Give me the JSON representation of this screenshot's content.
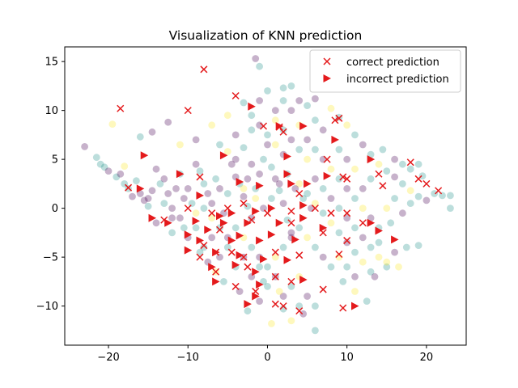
{
  "chart_data": {
    "type": "scatter",
    "title": "Visualization of KNN prediction",
    "xlabel": "",
    "ylabel": "",
    "xlim": [
      -25.5,
      25
    ],
    "ylim": [
      -14,
      16.5
    ],
    "xticks": [
      -20,
      -10,
      0,
      10,
      20
    ],
    "yticks": [
      -10,
      -5,
      0,
      5,
      10,
      15
    ],
    "grid": false,
    "legend_position": "top-right",
    "colors": {
      "class_purple": "#440154",
      "class_teal": "#21918c",
      "class_yellow": "#fde725",
      "prediction_red": "#e41a1c",
      "axis": "#000000"
    },
    "background_points": [
      [
        -23,
        6.3,
        0
      ],
      [
        -21.5,
        5.2,
        1
      ],
      [
        -20.5,
        4.2,
        1
      ],
      [
        -19,
        3.2,
        1
      ],
      [
        -18.5,
        3.5,
        0
      ],
      [
        -17.5,
        2,
        1
      ],
      [
        -16,
        1.5,
        0
      ],
      [
        -15.5,
        0.8,
        0
      ],
      [
        -15,
        0.2,
        1
      ],
      [
        -14.5,
        1.8,
        0
      ],
      [
        -14,
        4,
        0
      ],
      [
        -13.5,
        2.5,
        1
      ],
      [
        -13,
        3,
        0
      ],
      [
        -12.5,
        1.5,
        0
      ],
      [
        -12,
        0,
        0
      ],
      [
        -11.5,
        2,
        0
      ],
      [
        -11,
        3.5,
        1
      ],
      [
        -10.5,
        1,
        0
      ],
      [
        -10,
        2,
        0
      ],
      [
        -9.5,
        0.5,
        1
      ],
      [
        -9,
        4.5,
        0
      ],
      [
        -8.5,
        3.8,
        1
      ],
      [
        -8,
        2.5,
        1
      ],
      [
        -7.5,
        1.5,
        0
      ],
      [
        -7,
        0.5,
        0
      ],
      [
        -6.5,
        3,
        1
      ],
      [
        -6,
        2,
        0
      ],
      [
        -5.5,
        -0.5,
        0
      ],
      [
        -5,
        1.5,
        1
      ],
      [
        -4.5,
        4.5,
        0
      ],
      [
        -4,
        3.2,
        0
      ],
      [
        -3.5,
        2.5,
        1
      ],
      [
        -3,
        1.2,
        0
      ],
      [
        -2.5,
        0.2,
        1
      ],
      [
        -2,
        -1,
        0
      ],
      [
        -1.5,
        2,
        1
      ],
      [
        -1,
        3.5,
        0
      ],
      [
        -0.5,
        5,
        1
      ],
      [
        0,
        6.5,
        0
      ],
      [
        0.5,
        4.2,
        1
      ],
      [
        1,
        3,
        0
      ],
      [
        1.5,
        1.8,
        1
      ],
      [
        2,
        0.5,
        0
      ],
      [
        2.5,
        -1.2,
        1
      ],
      [
        3,
        -2.5,
        0
      ],
      [
        -14,
        -1.5,
        0
      ],
      [
        -12,
        -2.5,
        1
      ],
      [
        -10,
        -3,
        0
      ],
      [
        -8,
        -4,
        1
      ],
      [
        -6,
        -5,
        0
      ],
      [
        -4,
        -6,
        1
      ],
      [
        -2,
        -7,
        0
      ],
      [
        0,
        -8,
        1
      ],
      [
        2,
        -9,
        0
      ],
      [
        4,
        -10,
        1
      ],
      [
        -11,
        -1,
        0
      ],
      [
        -9,
        -2,
        1
      ],
      [
        -7,
        -3,
        0
      ],
      [
        -5,
        -4,
        1
      ],
      [
        -3,
        -5,
        0
      ],
      [
        -1,
        -6,
        1
      ],
      [
        1,
        -7,
        0
      ],
      [
        3,
        -8,
        1
      ],
      [
        5,
        -9,
        0
      ],
      [
        6,
        -10,
        1
      ],
      [
        -1.5,
        15.3,
        0
      ],
      [
        -1,
        14.5,
        1
      ],
      [
        2,
        12.3,
        1
      ],
      [
        3,
        12.5,
        1
      ],
      [
        4,
        11,
        0
      ],
      [
        5,
        10.5,
        1
      ],
      [
        6,
        11.2,
        0
      ],
      [
        8,
        10.2,
        2
      ],
      [
        9,
        9.3,
        1
      ],
      [
        10,
        8.5,
        2
      ],
      [
        -3,
        10.8,
        1
      ],
      [
        -5,
        9.5,
        2
      ],
      [
        -7,
        8.5,
        2
      ],
      [
        -9,
        7,
        0
      ],
      [
        -11,
        6.5,
        2
      ],
      [
        -12.5,
        8.8,
        0
      ],
      [
        -14.5,
        7.8,
        0
      ],
      [
        -16,
        7.3,
        1
      ],
      [
        -19.5,
        8.6,
        2
      ],
      [
        -18,
        4.3,
        2
      ],
      [
        11,
        7.5,
        1
      ],
      [
        12,
        6.5,
        0
      ],
      [
        13,
        5.5,
        1
      ],
      [
        14,
        4.5,
        2
      ],
      [
        15,
        3.8,
        1
      ],
      [
        16,
        3.2,
        0
      ],
      [
        17,
        2.5,
        1
      ],
      [
        18,
        1.8,
        2
      ],
      [
        19,
        1.2,
        1
      ],
      [
        20,
        0.8,
        0
      ],
      [
        21,
        1.5,
        1
      ],
      [
        22,
        1.3,
        1
      ],
      [
        23,
        1.3,
        1
      ],
      [
        23,
        0,
        1
      ],
      [
        19.5,
        3.3,
        1
      ],
      [
        14.5,
        6,
        1
      ],
      [
        16,
        5,
        0
      ],
      [
        17,
        4.5,
        1
      ],
      [
        18,
        4,
        1
      ],
      [
        19,
        4.5,
        1
      ],
      [
        6,
        3,
        0
      ],
      [
        7,
        2,
        1
      ],
      [
        8,
        1,
        0
      ],
      [
        9,
        0,
        1
      ],
      [
        10,
        -1,
        0
      ],
      [
        11,
        -2,
        1
      ],
      [
        12,
        -3,
        0
      ],
      [
        13,
        -4,
        1
      ],
      [
        14,
        -5,
        2
      ],
      [
        15,
        -6,
        1
      ],
      [
        4,
        2.5,
        2
      ],
      [
        5,
        1.5,
        1
      ],
      [
        6,
        0.5,
        2
      ],
      [
        7,
        -0.5,
        1
      ],
      [
        8,
        -1.5,
        2
      ],
      [
        9,
        -2.5,
        1
      ],
      [
        10,
        -3.5,
        0
      ],
      [
        11,
        -4.5,
        1
      ],
      [
        12,
        -5.5,
        2
      ],
      [
        13,
        -6.5,
        1
      ],
      [
        5,
        7,
        0
      ],
      [
        6,
        6,
        1
      ],
      [
        7,
        5,
        0
      ],
      [
        8,
        4,
        2
      ],
      [
        9,
        3,
        1
      ],
      [
        10,
        2,
        0
      ],
      [
        11,
        1,
        1
      ],
      [
        12,
        0,
        2
      ],
      [
        13,
        -1,
        0
      ],
      [
        14,
        -2,
        1
      ],
      [
        1,
        9,
        2
      ],
      [
        2,
        8,
        1
      ],
      [
        3,
        7,
        0
      ],
      [
        4,
        6,
        1
      ],
      [
        5,
        5,
        2
      ],
      [
        -2,
        9.5,
        1
      ],
      [
        -1,
        8.5,
        0
      ],
      [
        0,
        7.5,
        1
      ],
      [
        1,
        6.5,
        2
      ],
      [
        2,
        5.5,
        0
      ],
      [
        -6,
        6.5,
        1
      ],
      [
        -5,
        5.8,
        2
      ],
      [
        -4,
        5,
        0
      ],
      [
        -3,
        6.2,
        1
      ],
      [
        -2,
        4.5,
        0
      ],
      [
        -8,
        0,
        1
      ],
      [
        -7,
        -1,
        2
      ],
      [
        -6,
        -2,
        1
      ],
      [
        -5,
        -3,
        0
      ],
      [
        -4,
        -2,
        1
      ],
      [
        -3,
        -3,
        2
      ],
      [
        -2,
        -4,
        1
      ],
      [
        -1,
        -5,
        0
      ],
      [
        0,
        -6,
        1
      ],
      [
        1,
        -5,
        2
      ],
      [
        2,
        -4,
        1
      ],
      [
        3,
        -3,
        0
      ],
      [
        4,
        -2,
        1
      ],
      [
        5,
        -3,
        2
      ],
      [
        6,
        -4,
        1
      ],
      [
        7,
        -5,
        0
      ],
      [
        8,
        -6,
        1
      ],
      [
        9,
        -5,
        2
      ],
      [
        10,
        -6,
        1
      ],
      [
        11,
        -7,
        0
      ],
      [
        -9,
        -0.5,
        2
      ],
      [
        -10.5,
        -2,
        1
      ],
      [
        -12,
        -1,
        0
      ],
      [
        -13,
        0.5,
        1
      ],
      [
        -15,
        1,
        0
      ],
      [
        -16.5,
        2.8,
        1
      ],
      [
        -17,
        1.2,
        0
      ],
      [
        -18,
        2.5,
        1
      ],
      [
        -20,
        3.8,
        0
      ],
      [
        -21,
        4.5,
        1
      ],
      [
        0.5,
        -11.8,
        2
      ],
      [
        -2.5,
        -10.5,
        1
      ],
      [
        3,
        -11.5,
        2
      ],
      [
        -1,
        -9.5,
        0
      ],
      [
        2,
        -10.3,
        1
      ],
      [
        6,
        -12.5,
        1
      ],
      [
        4.5,
        -10.8,
        0
      ],
      [
        1.5,
        -8.5,
        2
      ],
      [
        -0.5,
        -7.5,
        1
      ],
      [
        4,
        -7,
        2
      ],
      [
        -3.5,
        -8.5,
        0
      ],
      [
        -5.5,
        -7.5,
        1
      ],
      [
        -6.5,
        -6.5,
        2
      ],
      [
        -7.5,
        -5.5,
        0
      ],
      [
        -8.5,
        -4.5,
        1
      ],
      [
        9.5,
        -7.5,
        1
      ],
      [
        11,
        -8.5,
        2
      ],
      [
        12.5,
        -9.5,
        1
      ],
      [
        13.5,
        -7,
        0
      ],
      [
        15,
        -5.5,
        2
      ],
      [
        16.5,
        -6,
        2
      ],
      [
        17.5,
        -4,
        1
      ],
      [
        19,
        -3.8,
        1
      ],
      [
        16,
        -4.5,
        0
      ],
      [
        14,
        -3.5,
        1
      ],
      [
        15,
        0,
        2
      ],
      [
        16,
        1,
        1
      ],
      [
        17,
        -0.5,
        0
      ],
      [
        18,
        0.5,
        1
      ],
      [
        15.5,
        -1.5,
        1
      ],
      [
        12,
        2,
        0
      ],
      [
        13,
        3,
        1
      ],
      [
        11,
        4,
        2
      ],
      [
        10,
        5,
        0
      ],
      [
        9,
        6,
        1
      ],
      [
        7,
        8,
        0
      ],
      [
        6,
        9,
        1
      ],
      [
        4,
        8.5,
        2
      ],
      [
        3,
        10,
        0
      ],
      [
        2,
        11,
        1
      ],
      [
        -1,
        11,
        0
      ],
      [
        0,
        12,
        1
      ],
      [
        1,
        10,
        0
      ],
      [
        -2,
        8,
        1
      ],
      [
        -4,
        7.5,
        0
      ],
      [
        -3,
        2,
        2
      ],
      [
        -2.5,
        3,
        0
      ],
      [
        -1.5,
        1,
        2
      ],
      [
        -0.5,
        0,
        0
      ],
      [
        0.5,
        1,
        1
      ],
      [
        1.5,
        2.5,
        0
      ],
      [
        2.5,
        3.5,
        1
      ],
      [
        3.5,
        2,
        0
      ],
      [
        4.5,
        1,
        1
      ],
      [
        5.5,
        0,
        0
      ]
    ],
    "series": [
      {
        "name": "correct prediction",
        "marker": "x",
        "points": [
          [
            -8,
            14.2
          ],
          [
            -4,
            11.5
          ],
          [
            -10,
            10
          ],
          [
            -18.5,
            10.2
          ],
          [
            1.5,
            8.3
          ],
          [
            2,
            7.8
          ],
          [
            8.5,
            9
          ],
          [
            9,
            9.2
          ],
          [
            7.5,
            5
          ],
          [
            10,
            3
          ],
          [
            9.5,
            3.2
          ],
          [
            14,
            3.5
          ],
          [
            14.5,
            2.3
          ],
          [
            18,
            4.7
          ],
          [
            19,
            3
          ],
          [
            20,
            2.5
          ],
          [
            21.5,
            1.8
          ],
          [
            4,
            1.5
          ],
          [
            -8.5,
            3.2
          ],
          [
            -17.5,
            2.1
          ],
          [
            -13,
            -1.2
          ],
          [
            -10,
            0
          ],
          [
            -7,
            -0.5
          ],
          [
            -5,
            0
          ],
          [
            -3,
            0.5
          ],
          [
            0,
            -0.5
          ],
          [
            3,
            -0.3
          ],
          [
            6,
            0
          ],
          [
            8,
            -0.5
          ],
          [
            10,
            -0.5
          ],
          [
            12,
            -1.5
          ],
          [
            -6,
            -2.2
          ],
          [
            -2,
            -1.2
          ],
          [
            3,
            -1.5
          ],
          [
            7,
            -2.5
          ],
          [
            10,
            -3.3
          ],
          [
            -8,
            -3.8
          ],
          [
            -4.5,
            -4.5
          ],
          [
            -8.5,
            -5
          ],
          [
            -6.5,
            -4.5
          ],
          [
            -3,
            -5
          ],
          [
            1,
            -4.5
          ],
          [
            4,
            -4.8
          ],
          [
            9,
            -4.7
          ],
          [
            -6.5,
            -6.5
          ],
          [
            -2.5,
            -6
          ],
          [
            1,
            -7
          ],
          [
            3,
            -7.5
          ],
          [
            7,
            -8.3
          ],
          [
            -4,
            -8
          ],
          [
            -1.5,
            -8.5
          ],
          [
            1,
            -9.8
          ],
          [
            2,
            -10
          ],
          [
            4,
            -10.5
          ],
          [
            9.5,
            -10.2
          ],
          [
            -0.5,
            8.4
          ]
        ]
      },
      {
        "name": "incorrect prediction",
        "marker": "triangle-right",
        "points": [
          [
            -2,
            10.4
          ],
          [
            1.5,
            8.4
          ],
          [
            8.5,
            7
          ],
          [
            -15.5,
            5.4
          ],
          [
            -5.5,
            5.4
          ],
          [
            2.5,
            5.3
          ],
          [
            7.5,
            3.3
          ],
          [
            13,
            5
          ],
          [
            -8.5,
            1.3
          ],
          [
            -3.5,
            2.7
          ],
          [
            -1,
            2.3
          ],
          [
            -16,
            2
          ],
          [
            -14.5,
            -1
          ],
          [
            -12.5,
            -1.5
          ],
          [
            -9,
            -1.3
          ],
          [
            -6,
            -0.8
          ],
          [
            -4.5,
            -0.5
          ],
          [
            -1.5,
            -0.3
          ],
          [
            0.5,
            0
          ],
          [
            4.5,
            0.3
          ],
          [
            -5.5,
            -1.5
          ],
          [
            -2.5,
            -1.5
          ],
          [
            1.5,
            -1.5
          ],
          [
            4.5,
            -1
          ],
          [
            -10,
            -2.7
          ],
          [
            -7.5,
            -2.2
          ],
          [
            -3.5,
            -2.8
          ],
          [
            0.5,
            -2.7
          ],
          [
            -8.5,
            -3.3
          ],
          [
            -4.5,
            -3.3
          ],
          [
            -1,
            -3.3
          ],
          [
            3.5,
            -3.2
          ],
          [
            -10,
            -4.3
          ],
          [
            -6.5,
            -4.5
          ],
          [
            -3.5,
            -4.8
          ],
          [
            -0.5,
            -5.2
          ],
          [
            -7,
            -6
          ],
          [
            -4,
            -5.8
          ],
          [
            -1.5,
            -6.5
          ],
          [
            2.5,
            -5.3
          ],
          [
            -6.5,
            -7.5
          ],
          [
            -1,
            -7.8
          ],
          [
            4.5,
            -7.3
          ],
          [
            -1.5,
            -9
          ],
          [
            11,
            -10
          ],
          [
            7,
            -2
          ],
          [
            13,
            -1.5
          ],
          [
            16,
            -3.2
          ],
          [
            14,
            -2.3
          ],
          [
            4.5,
            8.4
          ],
          [
            2.5,
            3.5
          ],
          [
            3,
            2.5
          ],
          [
            -2.5,
            -9.8
          ],
          [
            -11,
            3.5
          ],
          [
            5,
            2.5
          ]
        ]
      }
    ]
  }
}
